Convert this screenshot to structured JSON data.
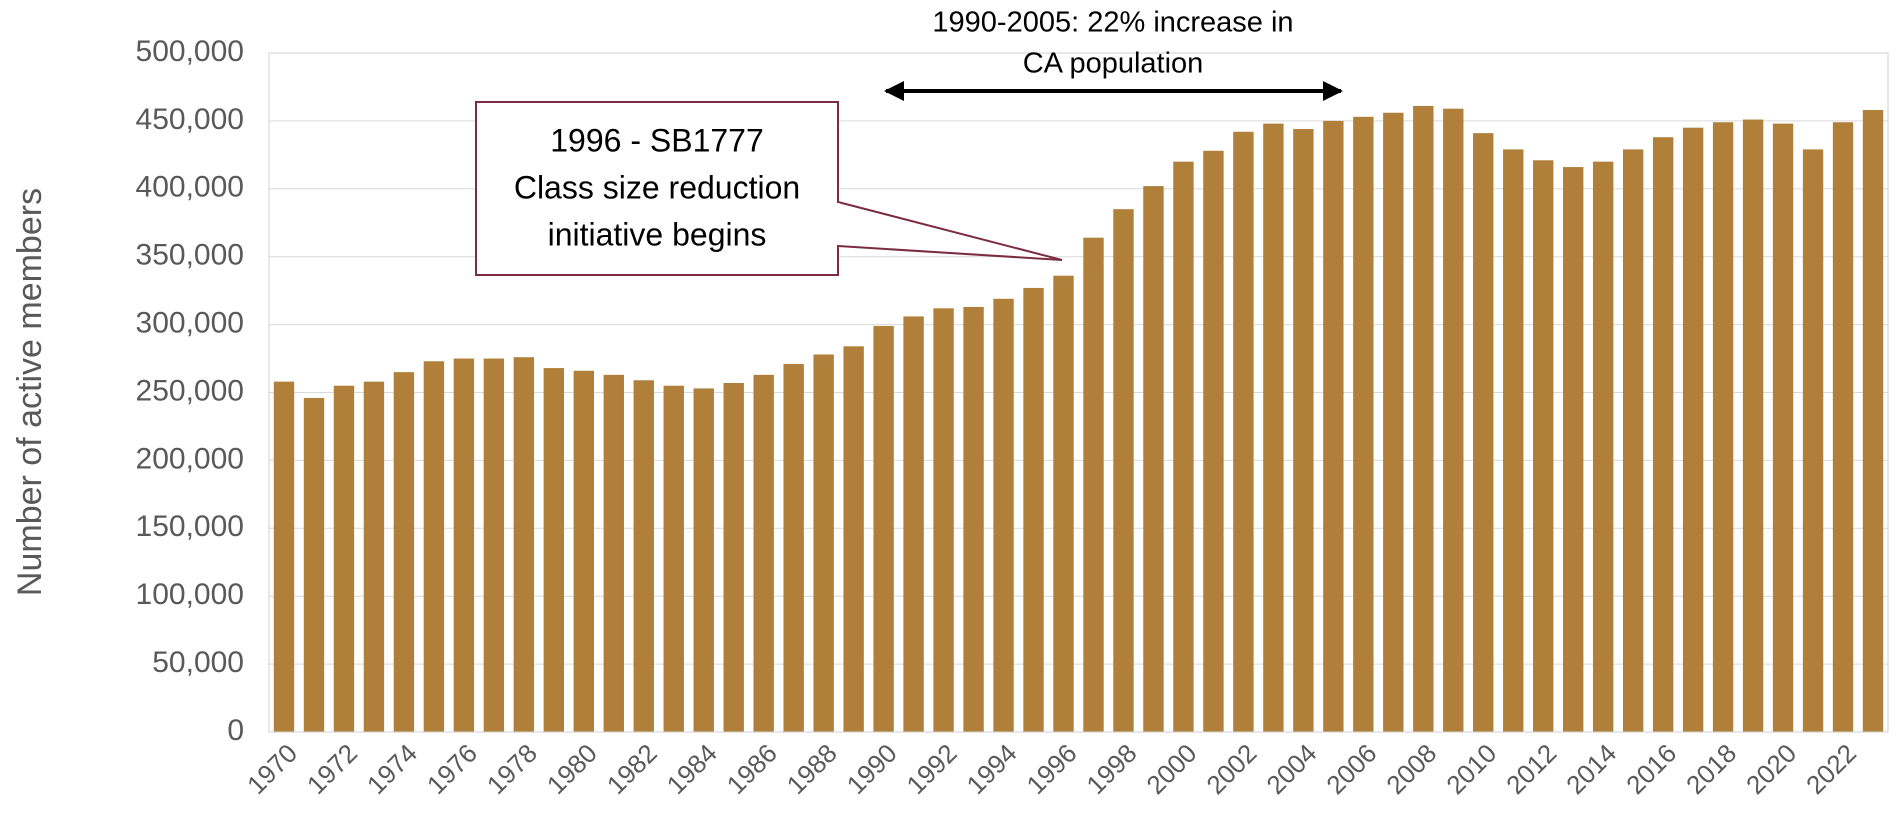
{
  "chart_data": {
    "type": "bar",
    "y_label": "Number of active members",
    "categories": [
      "1970",
      null,
      "1972",
      null,
      "1974",
      null,
      "1976",
      null,
      "1978",
      null,
      "1980",
      null,
      "1982",
      null,
      "1984",
      null,
      "1986",
      null,
      "1988",
      null,
      "1990",
      null,
      "1992",
      null,
      "1994",
      null,
      "1996",
      null,
      "1998",
      null,
      "2000",
      null,
      "2002",
      null,
      "2004",
      null,
      "2006",
      null,
      "2008",
      null,
      "2010",
      null,
      "2012",
      null,
      "2014",
      null,
      "2016",
      null,
      "2018",
      null,
      "2020",
      null,
      "2022",
      null
    ],
    "values": [
      258000,
      246000,
      255000,
      258000,
      265000,
      273000,
      275000,
      275000,
      276000,
      268000,
      266000,
      263000,
      259000,
      255000,
      253000,
      257000,
      263000,
      271000,
      278000,
      284000,
      299000,
      306000,
      312000,
      313000,
      319000,
      327000,
      336000,
      364000,
      385000,
      402000,
      420000,
      428000,
      442000,
      448000,
      444000,
      450000,
      453000,
      456000,
      461000,
      459000,
      441000,
      429000,
      421000,
      416000,
      420000,
      429000,
      438000,
      445000,
      449000,
      451000,
      448000,
      429000,
      449000,
      458000
    ],
    "color": "#b07f3a",
    "ylim": [
      0,
      500000
    ],
    "yticks": [
      0,
      {
        "value": 50000,
        "label": "50,000"
      },
      {
        "value": 100000,
        "label": "100,000"
      },
      {
        "value": 150000,
        "label": "150,000"
      },
      {
        "value": 200000,
        "label": "200,000"
      },
      {
        "value": 250000,
        "label": "250,000"
      },
      {
        "value": 300000,
        "label": "300,000"
      },
      {
        "value": 350000,
        "label": "350,000"
      },
      {
        "value": 400000,
        "label": "400,000"
      },
      {
        "value": 450000,
        "label": "450,000"
      },
      {
        "value": 500000,
        "label": "500,000"
      }
    ],
    "grid": true,
    "annotations": [
      {
        "lines": [
          "1990-2005: 22% increase in",
          "CA population"
        ]
      },
      {
        "lines": [
          "1996 - SB1777",
          "Class size reduction",
          "initiative begins"
        ]
      }
    ]
  }
}
